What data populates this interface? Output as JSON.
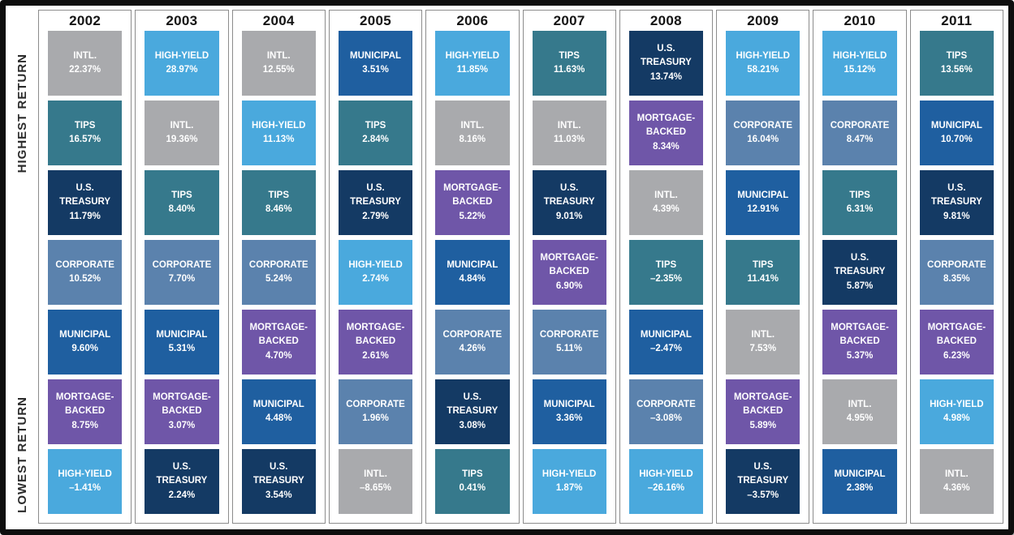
{
  "axis": {
    "highest_label": "HIGHEST RETURN",
    "lowest_label": "LOWEST RETURN"
  },
  "colors": {
    "intl": "#a9aaad",
    "high_yield": "#4aa9dd",
    "tips": "#36798c",
    "us_treasury": "#143a64",
    "corporate": "#5b82ad",
    "municipal": "#1f5fa0",
    "mortgage_backed": "#6f56a8"
  },
  "chart_data": {
    "type": "table",
    "description": "Bond asset class returns ranked highest to lowest per year",
    "assets_legend": [
      "INTL.",
      "HIGH-YIELD",
      "TIPS",
      "U.S. TREASURY",
      "CORPORATE",
      "MUNICIPAL",
      "MORTGAGE-BACKED"
    ],
    "years": [
      {
        "year": "2002",
        "entries": [
          {
            "asset": "INTL.",
            "display": "22.37%",
            "value": 22.37,
            "color_key": "intl"
          },
          {
            "asset": "TIPS",
            "display": "16.57%",
            "value": 16.57,
            "color_key": "tips"
          },
          {
            "asset": "U.S. TREASURY",
            "display": "11.79%",
            "value": 11.79,
            "color_key": "us_treasury"
          },
          {
            "asset": "CORPORATE",
            "display": "10.52%",
            "value": 10.52,
            "color_key": "corporate"
          },
          {
            "asset": "MUNICIPAL",
            "display": "9.60%",
            "value": 9.6,
            "color_key": "municipal"
          },
          {
            "asset": "MORTGAGE-BACKED",
            "display": "8.75%",
            "value": 8.75,
            "color_key": "mortgage_backed"
          },
          {
            "asset": "HIGH-YIELD",
            "display": "–1.41%",
            "value": -1.41,
            "color_key": "high_yield"
          }
        ]
      },
      {
        "year": "2003",
        "entries": [
          {
            "asset": "HIGH-YIELD",
            "display": "28.97%",
            "value": 28.97,
            "color_key": "high_yield"
          },
          {
            "asset": "INTL.",
            "display": "19.36%",
            "value": 19.36,
            "color_key": "intl"
          },
          {
            "asset": "TIPS",
            "display": "8.40%",
            "value": 8.4,
            "color_key": "tips"
          },
          {
            "asset": "CORPORATE",
            "display": "7.70%",
            "value": 7.7,
            "color_key": "corporate"
          },
          {
            "asset": "MUNICIPAL",
            "display": "5.31%",
            "value": 5.31,
            "color_key": "municipal"
          },
          {
            "asset": "MORTGAGE-BACKED",
            "display": "3.07%",
            "value": 3.07,
            "color_key": "mortgage_backed"
          },
          {
            "asset": "U.S. TREASURY",
            "display": "2.24%",
            "value": 2.24,
            "color_key": "us_treasury"
          }
        ]
      },
      {
        "year": "2004",
        "entries": [
          {
            "asset": "INTL.",
            "display": "12.55%",
            "value": 12.55,
            "color_key": "intl"
          },
          {
            "asset": "HIGH-YIELD",
            "display": "11.13%",
            "value": 11.13,
            "color_key": "high_yield"
          },
          {
            "asset": "TIPS",
            "display": "8.46%",
            "value": 8.46,
            "color_key": "tips"
          },
          {
            "asset": "CORPORATE",
            "display": "5.24%",
            "value": 5.24,
            "color_key": "corporate"
          },
          {
            "asset": "MORTGAGE-BACKED",
            "display": "4.70%",
            "value": 4.7,
            "color_key": "mortgage_backed"
          },
          {
            "asset": "MUNICIPAL",
            "display": "4.48%",
            "value": 4.48,
            "color_key": "municipal"
          },
          {
            "asset": "U.S. TREASURY",
            "display": "3.54%",
            "value": 3.54,
            "color_key": "us_treasury"
          }
        ]
      },
      {
        "year": "2005",
        "entries": [
          {
            "asset": "MUNICIPAL",
            "display": "3.51%",
            "value": 3.51,
            "color_key": "municipal"
          },
          {
            "asset": "TIPS",
            "display": "2.84%",
            "value": 2.84,
            "color_key": "tips"
          },
          {
            "asset": "U.S. TREASURY",
            "display": "2.79%",
            "value": 2.79,
            "color_key": "us_treasury"
          },
          {
            "asset": "HIGH-YIELD",
            "display": "2.74%",
            "value": 2.74,
            "color_key": "high_yield"
          },
          {
            "asset": "MORTGAGE-BACKED",
            "display": "2.61%",
            "value": 2.61,
            "color_key": "mortgage_backed"
          },
          {
            "asset": "CORPORATE",
            "display": "1.96%",
            "value": 1.96,
            "color_key": "corporate"
          },
          {
            "asset": "INTL.",
            "display": "–8.65%",
            "value": -8.65,
            "color_key": "intl"
          }
        ]
      },
      {
        "year": "2006",
        "entries": [
          {
            "asset": "HIGH-YIELD",
            "display": "11.85%",
            "value": 11.85,
            "color_key": "high_yield"
          },
          {
            "asset": "INTL.",
            "display": "8.16%",
            "value": 8.16,
            "color_key": "intl"
          },
          {
            "asset": "MORTGAGE-BACKED",
            "display": "5.22%",
            "value": 5.22,
            "color_key": "mortgage_backed"
          },
          {
            "asset": "MUNICIPAL",
            "display": "4.84%",
            "value": 4.84,
            "color_key": "municipal"
          },
          {
            "asset": "CORPORATE",
            "display": "4.26%",
            "value": 4.26,
            "color_key": "corporate"
          },
          {
            "asset": "U.S. TREASURY",
            "display": "3.08%",
            "value": 3.08,
            "color_key": "us_treasury"
          },
          {
            "asset": "TIPS",
            "display": "0.41%",
            "value": 0.41,
            "color_key": "tips"
          }
        ]
      },
      {
        "year": "2007",
        "entries": [
          {
            "asset": "TIPS",
            "display": "11.63%",
            "value": 11.63,
            "color_key": "tips"
          },
          {
            "asset": "INTL.",
            "display": "11.03%",
            "value": 11.03,
            "color_key": "intl"
          },
          {
            "asset": "U.S. TREASURY",
            "display": "9.01%",
            "value": 9.01,
            "color_key": "us_treasury"
          },
          {
            "asset": "MORTGAGE-BACKED",
            "display": "6.90%",
            "value": 6.9,
            "color_key": "mortgage_backed"
          },
          {
            "asset": "CORPORATE",
            "display": "5.11%",
            "value": 5.11,
            "color_key": "corporate"
          },
          {
            "asset": "MUNICIPAL",
            "display": "3.36%",
            "value": 3.36,
            "color_key": "municipal"
          },
          {
            "asset": "HIGH-YIELD",
            "display": "1.87%",
            "value": 1.87,
            "color_key": "high_yield"
          }
        ]
      },
      {
        "year": "2008",
        "entries": [
          {
            "asset": "U.S. TREASURY",
            "display": "13.74%",
            "value": 13.74,
            "color_key": "us_treasury"
          },
          {
            "asset": "MORTGAGE-BACKED",
            "display": "8.34%",
            "value": 8.34,
            "color_key": "mortgage_backed"
          },
          {
            "asset": "INTL.",
            "display": "4.39%",
            "value": 4.39,
            "color_key": "intl"
          },
          {
            "asset": "TIPS",
            "display": "–2.35%",
            "value": -2.35,
            "color_key": "tips"
          },
          {
            "asset": "MUNICIPAL",
            "display": "–2.47%",
            "value": -2.47,
            "color_key": "municipal"
          },
          {
            "asset": "CORPORATE",
            "display": "–3.08%",
            "value": -3.08,
            "color_key": "corporate"
          },
          {
            "asset": "HIGH-YIELD",
            "display": "–26.16%",
            "value": -26.16,
            "color_key": "high_yield"
          }
        ]
      },
      {
        "year": "2009",
        "entries": [
          {
            "asset": "HIGH-YIELD",
            "display": "58.21%",
            "value": 58.21,
            "color_key": "high_yield"
          },
          {
            "asset": "CORPORATE",
            "display": "16.04%",
            "value": 16.04,
            "color_key": "corporate"
          },
          {
            "asset": "MUNICIPAL",
            "display": "12.91%",
            "value": 12.91,
            "color_key": "municipal"
          },
          {
            "asset": "TIPS",
            "display": "11.41%",
            "value": 11.41,
            "color_key": "tips"
          },
          {
            "asset": "INTL.",
            "display": "7.53%",
            "value": 7.53,
            "color_key": "intl"
          },
          {
            "asset": "MORTGAGE-BACKED",
            "display": "5.89%",
            "value": 5.89,
            "color_key": "mortgage_backed"
          },
          {
            "asset": "U.S. TREASURY",
            "display": "–3.57%",
            "value": -3.57,
            "color_key": "us_treasury"
          }
        ]
      },
      {
        "year": "2010",
        "entries": [
          {
            "asset": "HIGH-YIELD",
            "display": "15.12%",
            "value": 15.12,
            "color_key": "high_yield"
          },
          {
            "asset": "CORPORATE",
            "display": "8.47%",
            "value": 8.47,
            "color_key": "corporate"
          },
          {
            "asset": "TIPS",
            "display": "6.31%",
            "value": 6.31,
            "color_key": "tips"
          },
          {
            "asset": "U.S. TREASURY",
            "display": "5.87%",
            "value": 5.87,
            "color_key": "us_treasury"
          },
          {
            "asset": "MORTGAGE-BACKED",
            "display": "5.37%",
            "value": 5.37,
            "color_key": "mortgage_backed"
          },
          {
            "asset": "INTL.",
            "display": "4.95%",
            "value": 4.95,
            "color_key": "intl"
          },
          {
            "asset": "MUNICIPAL",
            "display": "2.38%",
            "value": 2.38,
            "color_key": "municipal"
          }
        ]
      },
      {
        "year": "2011",
        "entries": [
          {
            "asset": "TIPS",
            "display": "13.56%",
            "value": 13.56,
            "color_key": "tips"
          },
          {
            "asset": "MUNICIPAL",
            "display": "10.70%",
            "value": 10.7,
            "color_key": "municipal"
          },
          {
            "asset": "U.S. TREASURY",
            "display": "9.81%",
            "value": 9.81,
            "color_key": "us_treasury"
          },
          {
            "asset": "CORPORATE",
            "display": "8.35%",
            "value": 8.35,
            "color_key": "corporate"
          },
          {
            "asset": "MORTGAGE-BACKED",
            "display": "6.23%",
            "value": 6.23,
            "color_key": "mortgage_backed"
          },
          {
            "asset": "HIGH-YIELD",
            "display": "4.98%",
            "value": 4.98,
            "color_key": "high_yield"
          },
          {
            "asset": "INTL.",
            "display": "4.36%",
            "value": 4.36,
            "color_key": "intl"
          }
        ]
      }
    ]
  }
}
